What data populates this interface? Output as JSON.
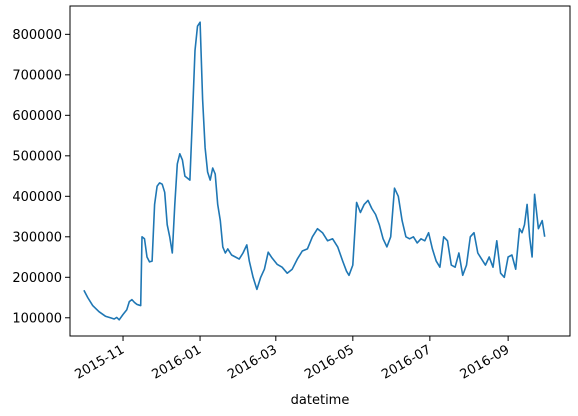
{
  "chart_data": {
    "type": "line",
    "xlabel": "datetime",
    "ylabel": "",
    "title": "",
    "xlim": [
      "2015-09-20",
      "2016-10-20"
    ],
    "ylim": [
      55000,
      870000
    ],
    "x_ticks": [
      "2015-11",
      "2016-01",
      "2016-03",
      "2016-05",
      "2016-07",
      "2016-09"
    ],
    "y_ticks": [
      100000,
      200000,
      300000,
      400000,
      500000,
      600000,
      700000,
      800000
    ],
    "grid": false,
    "line_color": "#1f77b4",
    "series": [
      {
        "x": [
          "2015-10-01",
          "2015-10-04",
          "2015-10-08",
          "2015-10-13",
          "2015-10-18",
          "2015-10-22",
          "2015-10-25",
          "2015-10-27",
          "2015-10-29",
          "2015-11-01",
          "2015-11-04",
          "2015-11-06",
          "2015-11-08",
          "2015-11-10",
          "2015-11-12",
          "2015-11-13",
          "2015-11-15",
          "2015-11-16",
          "2015-11-18",
          "2015-11-20",
          "2015-11-22",
          "2015-11-24",
          "2015-11-26",
          "2015-11-28",
          "2015-11-30",
          "2015-12-02",
          "2015-12-04",
          "2015-12-06",
          "2015-12-08",
          "2015-12-10",
          "2015-12-12",
          "2015-12-14",
          "2015-12-16",
          "2015-12-18",
          "2015-12-20",
          "2015-12-22",
          "2015-12-24",
          "2015-12-26",
          "2015-12-28",
          "2015-12-30",
          "2016-01-01",
          "2016-01-03",
          "2016-01-05",
          "2016-01-07",
          "2016-01-09",
          "2016-01-11",
          "2016-01-13",
          "2016-01-15",
          "2016-01-17",
          "2016-01-19",
          "2016-01-21",
          "2016-01-23",
          "2016-01-26",
          "2016-01-29",
          "2016-02-01",
          "2016-02-04",
          "2016-02-07",
          "2016-02-09",
          "2016-02-12",
          "2016-02-15",
          "2016-02-18",
          "2016-02-21",
          "2016-02-24",
          "2016-02-27",
          "2016-03-02",
          "2016-03-06",
          "2016-03-10",
          "2016-03-14",
          "2016-03-18",
          "2016-03-22",
          "2016-03-26",
          "2016-03-30",
          "2016-04-03",
          "2016-04-07",
          "2016-04-11",
          "2016-04-15",
          "2016-04-19",
          "2016-04-23",
          "2016-04-26",
          "2016-04-28",
          "2016-05-01",
          "2016-05-04",
          "2016-05-07",
          "2016-05-10",
          "2016-05-13",
          "2016-05-16",
          "2016-05-19",
          "2016-05-22",
          "2016-05-25",
          "2016-05-28",
          "2016-05-31",
          "2016-06-03",
          "2016-06-06",
          "2016-06-09",
          "2016-06-12",
          "2016-06-15",
          "2016-06-18",
          "2016-06-21",
          "2016-06-24",
          "2016-06-27",
          "2016-06-30",
          "2016-07-03",
          "2016-07-06",
          "2016-07-09",
          "2016-07-12",
          "2016-07-15",
          "2016-07-18",
          "2016-07-21",
          "2016-07-24",
          "2016-07-27",
          "2016-07-30",
          "2016-08-02",
          "2016-08-05",
          "2016-08-08",
          "2016-08-11",
          "2016-08-14",
          "2016-08-17",
          "2016-08-20",
          "2016-08-23",
          "2016-08-26",
          "2016-08-29",
          "2016-09-01",
          "2016-09-04",
          "2016-09-07",
          "2016-09-10",
          "2016-09-12",
          "2016-09-14",
          "2016-09-16",
          "2016-09-18",
          "2016-09-20",
          "2016-09-22",
          "2016-09-25",
          "2016-09-28",
          "2016-09-30"
        ],
        "values": [
          168000,
          150000,
          130000,
          115000,
          104000,
          100000,
          97000,
          101000,
          95000,
          108000,
          120000,
          140000,
          145000,
          138000,
          133000,
          132000,
          130000,
          300000,
          295000,
          250000,
          238000,
          240000,
          380000,
          425000,
          433000,
          430000,
          410000,
          330000,
          300000,
          260000,
          380000,
          480000,
          505000,
          490000,
          450000,
          445000,
          440000,
          600000,
          760000,
          820000,
          830000,
          640000,
          520000,
          460000,
          440000,
          470000,
          455000,
          380000,
          340000,
          275000,
          260000,
          270000,
          255000,
          250000,
          245000,
          260000,
          280000,
          240000,
          200000,
          170000,
          200000,
          220000,
          262000,
          248000,
          232000,
          225000,
          210000,
          220000,
          245000,
          265000,
          270000,
          300000,
          320000,
          310000,
          290000,
          295000,
          275000,
          240000,
          215000,
          205000,
          230000,
          385000,
          360000,
          380000,
          390000,
          370000,
          355000,
          330000,
          295000,
          275000,
          300000,
          420000,
          400000,
          340000,
          300000,
          295000,
          300000,
          285000,
          295000,
          290000,
          310000,
          270000,
          240000,
          225000,
          300000,
          290000,
          230000,
          225000,
          260000,
          205000,
          230000,
          300000,
          310000,
          260000,
          245000,
          230000,
          250000,
          225000,
          290000,
          210000,
          200000,
          250000,
          255000,
          220000,
          320000,
          310000,
          330000,
          380000,
          300000,
          250000,
          405000,
          320000,
          340000,
          300000
        ]
      }
    ]
  }
}
